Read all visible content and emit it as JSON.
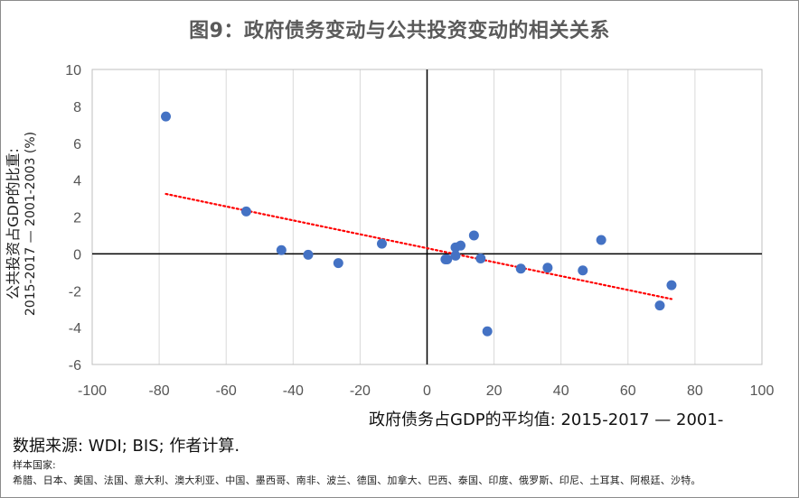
{
  "chart_data": {
    "type": "scatter",
    "title": "图9：政府债务变动与公共投资变动的相关关系",
    "xlabel": "政府债务占GDP的平均值: 2015-2017 — 2001-",
    "ylabel_line1": "公共投资占GDP的比重:",
    "ylabel_line2": "2015-2017 — 2001-2003 (%)",
    "xlim": [
      -100,
      100
    ],
    "ylim": [
      -6,
      10
    ],
    "x_ticks": [
      -100,
      -80,
      -60,
      -40,
      -20,
      0,
      20,
      40,
      60,
      80,
      100
    ],
    "y_ticks": [
      -6,
      -4,
      -2,
      0,
      2,
      4,
      6,
      8,
      10
    ],
    "grid": "vertical",
    "marker_color": "#4472C4",
    "trendline_color": "#FF0000",
    "trendline": {
      "x": [
        -78,
        73
      ],
      "y": [
        3.25,
        -2.45
      ]
    },
    "points": [
      {
        "x": -78,
        "y": 7.45
      },
      {
        "x": -54,
        "y": 2.3
      },
      {
        "x": -43.5,
        "y": 0.2
      },
      {
        "x": -35.5,
        "y": -0.05
      },
      {
        "x": -26.5,
        "y": -0.5
      },
      {
        "x": -13.5,
        "y": 0.55
      },
      {
        "x": 5.5,
        "y": -0.3
      },
      {
        "x": 6,
        "y": -0.3
      },
      {
        "x": 8.5,
        "y": 0.35
      },
      {
        "x": 8.5,
        "y": -0.1
      },
      {
        "x": 10,
        "y": 0.45
      },
      {
        "x": 14,
        "y": 1.0
      },
      {
        "x": 16,
        "y": -0.25
      },
      {
        "x": 18,
        "y": -4.2
      },
      {
        "x": 28,
        "y": -0.8
      },
      {
        "x": 36,
        "y": -0.75
      },
      {
        "x": 46.5,
        "y": -0.9
      },
      {
        "x": 52,
        "y": 0.75
      },
      {
        "x": 69.5,
        "y": -2.8
      },
      {
        "x": 73,
        "y": -1.7
      }
    ]
  },
  "source": "数据来源: WDI; BIS; 作者计算.",
  "countries_title": "样本国家:",
  "countries": "希腊、日本、美国、法国、意大利、澳大利亚、中国、墨西哥、南非、波兰、德国、加拿大、巴西、泰国、印度、俄罗斯、印尼、土耳其、阿根廷、沙特。"
}
